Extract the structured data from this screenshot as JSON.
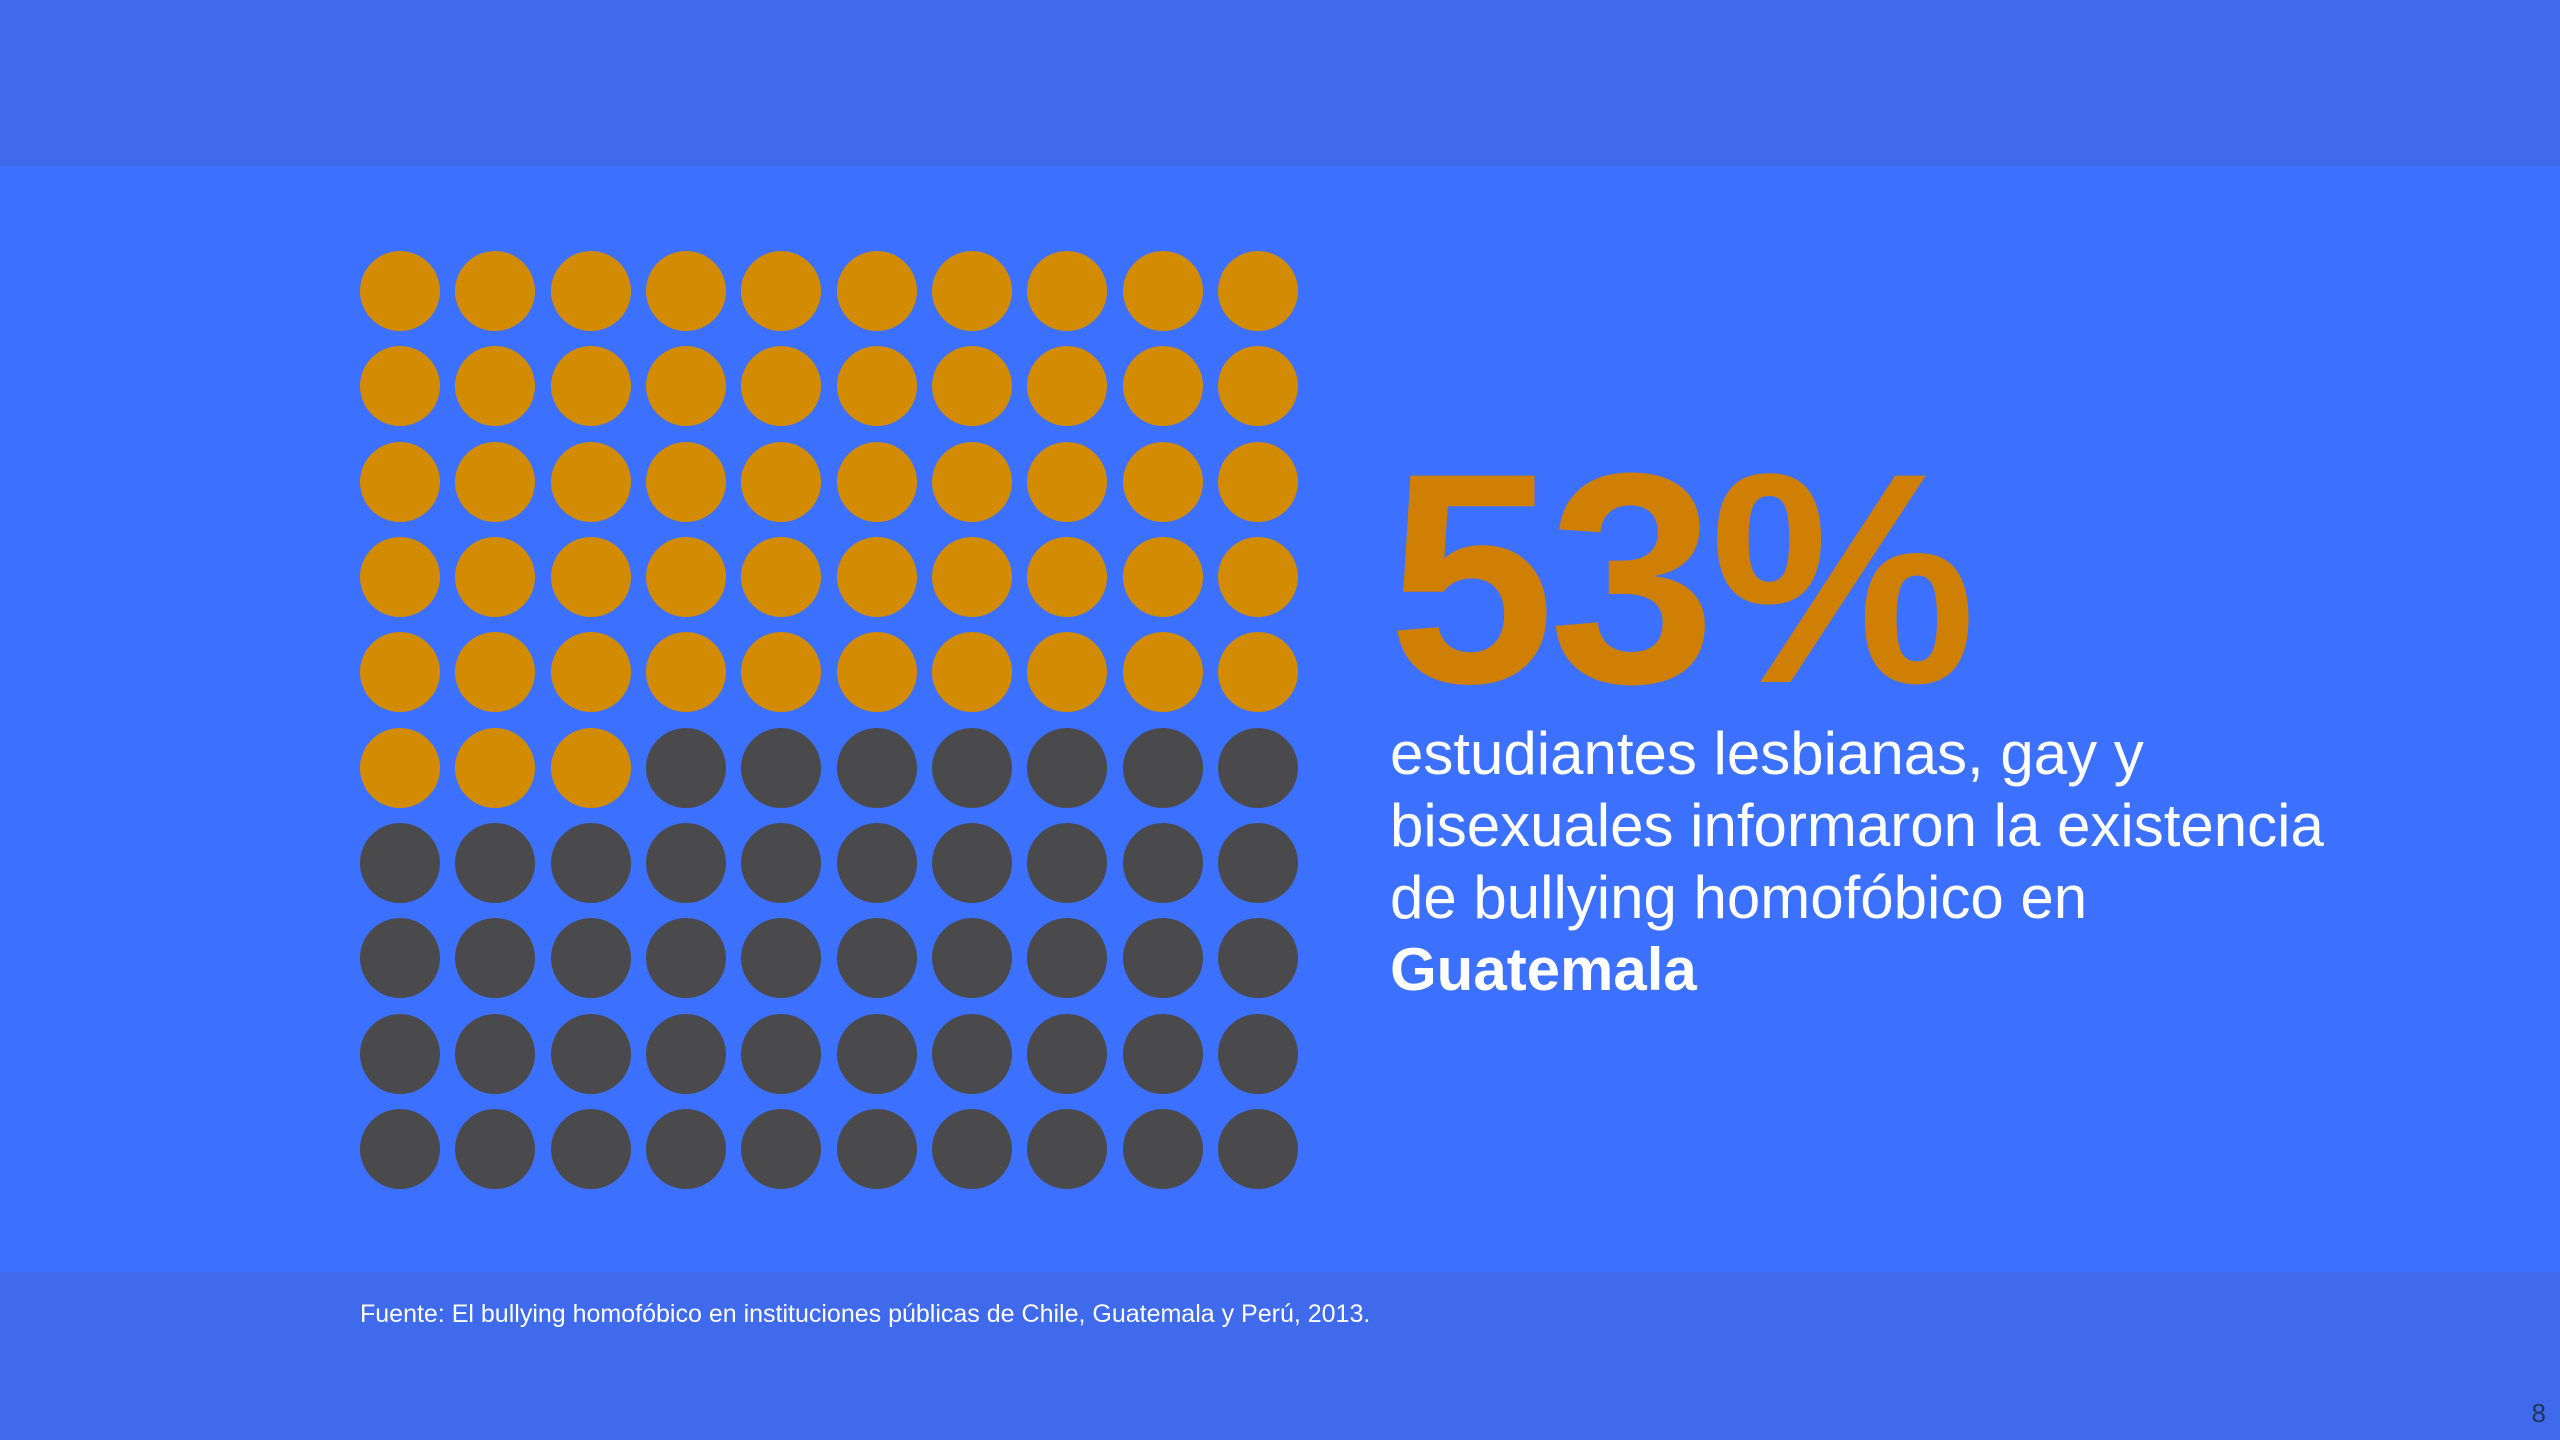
{
  "slide": {
    "percent_label": "53%",
    "description_line_1": "estudiantes lesbianas, gay y",
    "description_line_2": "bisexuales informaron la existencia",
    "description_line_3": "de bullying homofóbico en",
    "country": "Guatemala",
    "source": "Fuente: El bullying homofóbico en instituciones públicas de Chile, Guatemala y Perú, 2013.",
    "page_number": "8"
  },
  "chart_data": {
    "type": "waffle",
    "total": 100,
    "filled": 53,
    "rows": 10,
    "columns": 10,
    "fill_order": "row-major from top-left",
    "colors": {
      "filled": "#d38b04",
      "empty": "#4a4a4c",
      "percent_text": "#d07f05",
      "background": "#3c70fe",
      "band": "#3e6aeb"
    }
  }
}
